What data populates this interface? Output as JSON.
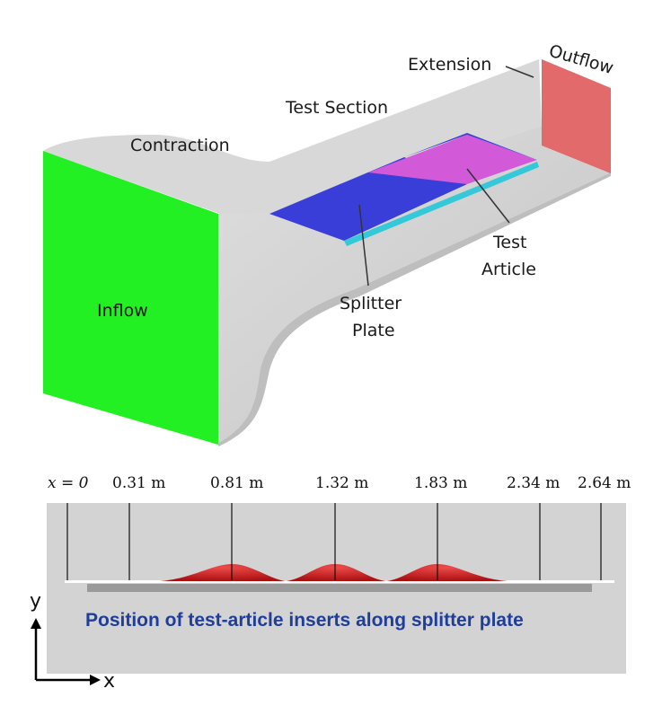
{
  "tunnel": {
    "labels": {
      "contraction": "Contraction",
      "test_section": "Test Section",
      "extension": "Extension",
      "outflow": "Outflow",
      "inflow": "Inflow",
      "test_article_1": "Test",
      "test_article_2": "Article",
      "splitter_plate_1": "Splitter",
      "splitter_plate_2": "Plate"
    },
    "colors": {
      "body": "#cfcfcf",
      "inflow": "#22f022",
      "outflow": "#e05a5a",
      "splitter_plate": "#3a3ed8",
      "test_article": "#d25ad8",
      "plate_edge": "#35c8d8"
    }
  },
  "plate_section": {
    "positions": [
      {
        "label": "x = 0",
        "x_m": 0
      },
      {
        "label": "0.31 m",
        "x_m": 0.31
      },
      {
        "label": "0.81 m",
        "x_m": 0.81
      },
      {
        "label": "1.32 m",
        "x_m": 1.32
      },
      {
        "label": "1.83 m",
        "x_m": 1.83
      },
      {
        "label": "2.34 m",
        "x_m": 2.34
      },
      {
        "label": "2.64 m",
        "x_m": 2.64
      }
    ],
    "caption": "Position of test-article inserts along splitter plate",
    "axes": {
      "y": "y",
      "x": "x"
    },
    "colors": {
      "background": "#d3d3d3",
      "bump": "#d62020",
      "plate": "#9a9a9a",
      "caption": "#1f3e9a"
    }
  }
}
